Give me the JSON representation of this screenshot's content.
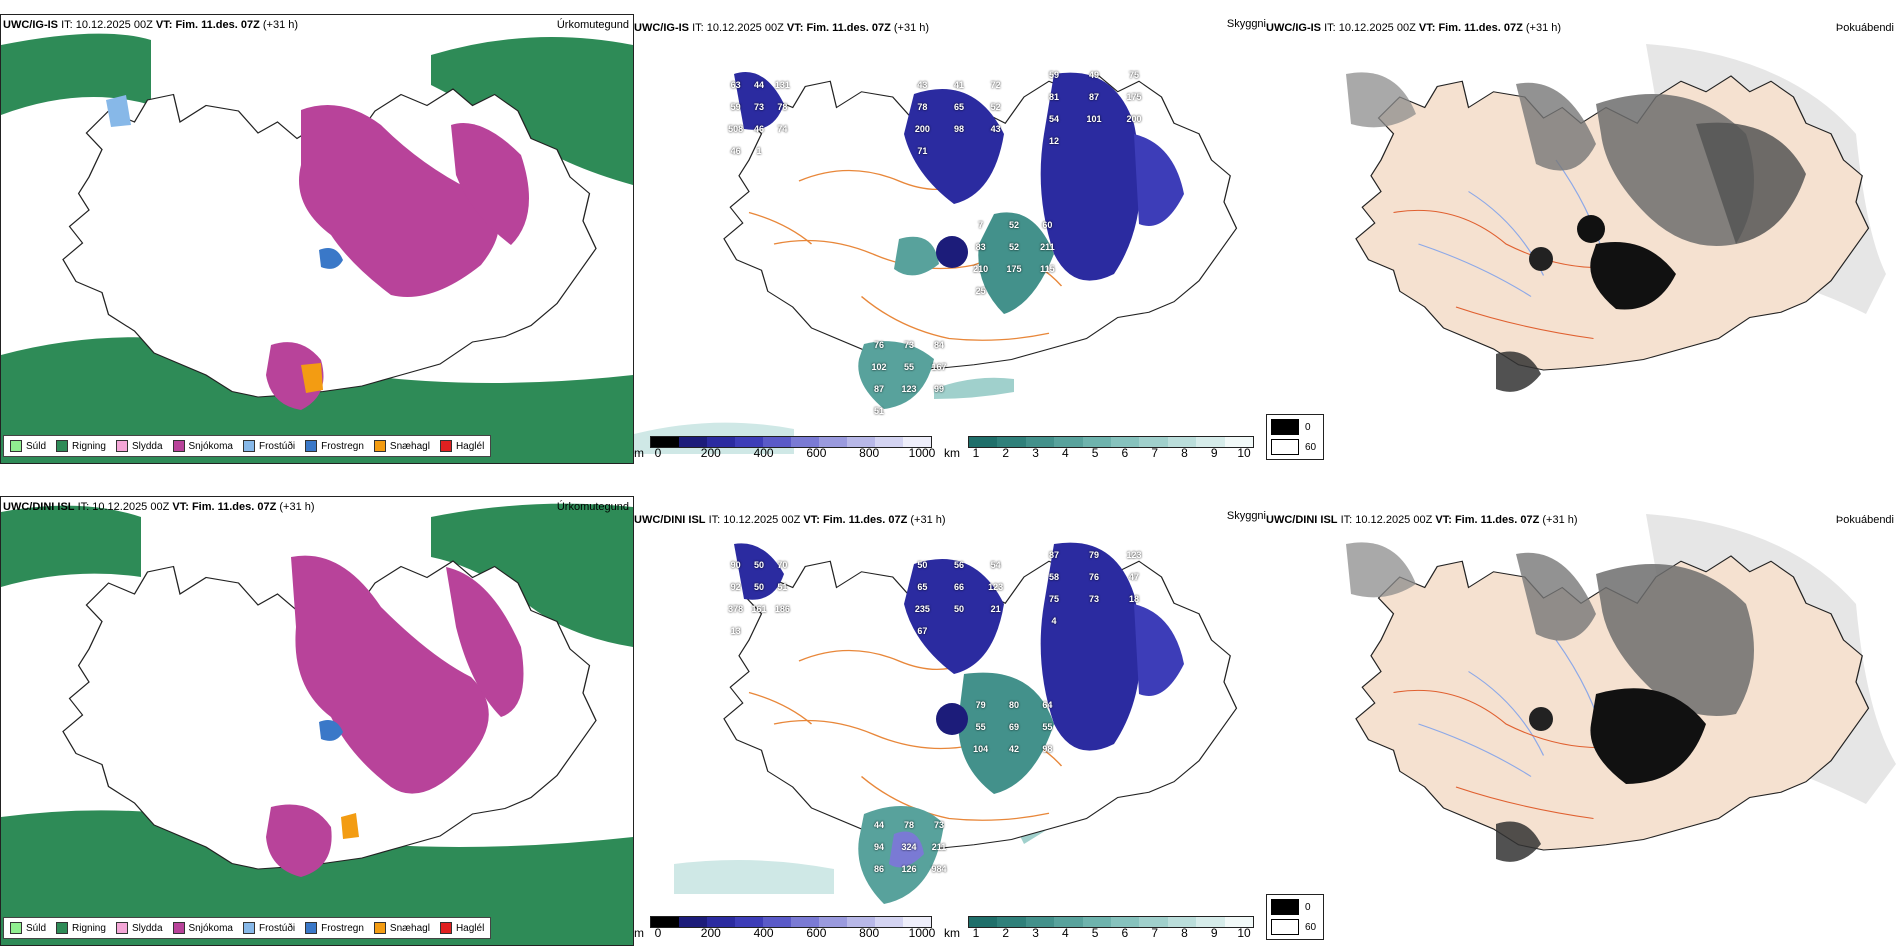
{
  "rows": [
    {
      "model": "UWC/IG-IS",
      "it_label": "IT:",
      "it": "10.12.2025 00Z",
      "vt_label": "VT:",
      "vt": "Fim. 11.des. 07Z",
      "lead": "(+31 h)",
      "cloud_labels": [
        "63",
        "43",
        "59",
        "7",
        "76",
        "44",
        "41",
        "49",
        "52",
        "73",
        "131",
        "72",
        "75",
        "60",
        "84",
        "59",
        "78",
        "81",
        "83",
        "102",
        "73",
        "65",
        "87",
        "52",
        "55",
        "78",
        "52",
        "175",
        "211",
        "167",
        "508",
        "200",
        "54",
        "210",
        "87",
        "46",
        "98",
        "101",
        "175",
        "123",
        "74",
        "43",
        "200",
        "115",
        "99",
        "46",
        "71",
        "12",
        "25",
        "51",
        "1"
      ]
    },
    {
      "model": "UWC/DINI ISL",
      "it_label": "IT:",
      "it": "10.12.2025 00Z",
      "vt_label": "VT:",
      "vt": "Fim. 11.des. 07Z",
      "lead": "(+31 h)",
      "cloud_labels": [
        "90",
        "50",
        "87",
        "79",
        "44",
        "50",
        "56",
        "79",
        "80",
        "78",
        "70",
        "54",
        "123",
        "64",
        "73",
        "92",
        "65",
        "58",
        "55",
        "94",
        "50",
        "66",
        "76",
        "69",
        "324",
        "51",
        "123",
        "47",
        "55",
        "211",
        "378",
        "235",
        "75",
        "104",
        "86",
        "161",
        "50",
        "73",
        "42",
        "126",
        "186",
        "21",
        "18",
        "98",
        "984",
        "13",
        "67",
        "4"
      ]
    }
  ],
  "panel_types": {
    "precip": "Úrkomutegund",
    "cloud": "Skyggni",
    "fog": "Þokuábendi"
  },
  "precip_legend": [
    {
      "label": "Súld",
      "color": "#90ee90"
    },
    {
      "label": "Rigning",
      "color": "#2e8b57"
    },
    {
      "label": "Slydda",
      "color": "#f4a6d7"
    },
    {
      "label": "Snjókoma",
      "color": "#b8439a"
    },
    {
      "label": "Frostúði",
      "color": "#87b8e8"
    },
    {
      "label": "Frostregn",
      "color": "#3a78c8"
    },
    {
      "label": "Snæhagl",
      "color": "#f39c12"
    },
    {
      "label": "Haglél",
      "color": "#e02020"
    }
  ],
  "cloudbase_bar": {
    "unit": "m",
    "ticks": [
      "0",
      "200",
      "400",
      "600",
      "800",
      "1000"
    ],
    "colors": [
      "#000000",
      "#1c1c7a",
      "#2b2ba0",
      "#3d3db8",
      "#5a5ac8",
      "#7a7ad4",
      "#9a9ade",
      "#b8b8e8",
      "#d4d4f2",
      "#eeeefa"
    ]
  },
  "visibility_bar": {
    "unit": "km",
    "ticks": [
      "1",
      "2",
      "3",
      "4",
      "5",
      "6",
      "7",
      "8",
      "9",
      "10"
    ],
    "colors": [
      "#1f6f6a",
      "#2f807a",
      "#43918b",
      "#58a29c",
      "#6eb3ad",
      "#86c2bd",
      "#a0d0cc",
      "#bbdedb",
      "#d6ecea",
      "#f1f9f8"
    ]
  },
  "fog_legend": [
    {
      "label": "0",
      "color": "#000000"
    },
    {
      "label": "60",
      "color": "#ffffff"
    }
  ],
  "colors": {
    "land_fog": "#f5e1d0",
    "road": "#e8873a",
    "river_fog": "#8ca8e8"
  }
}
